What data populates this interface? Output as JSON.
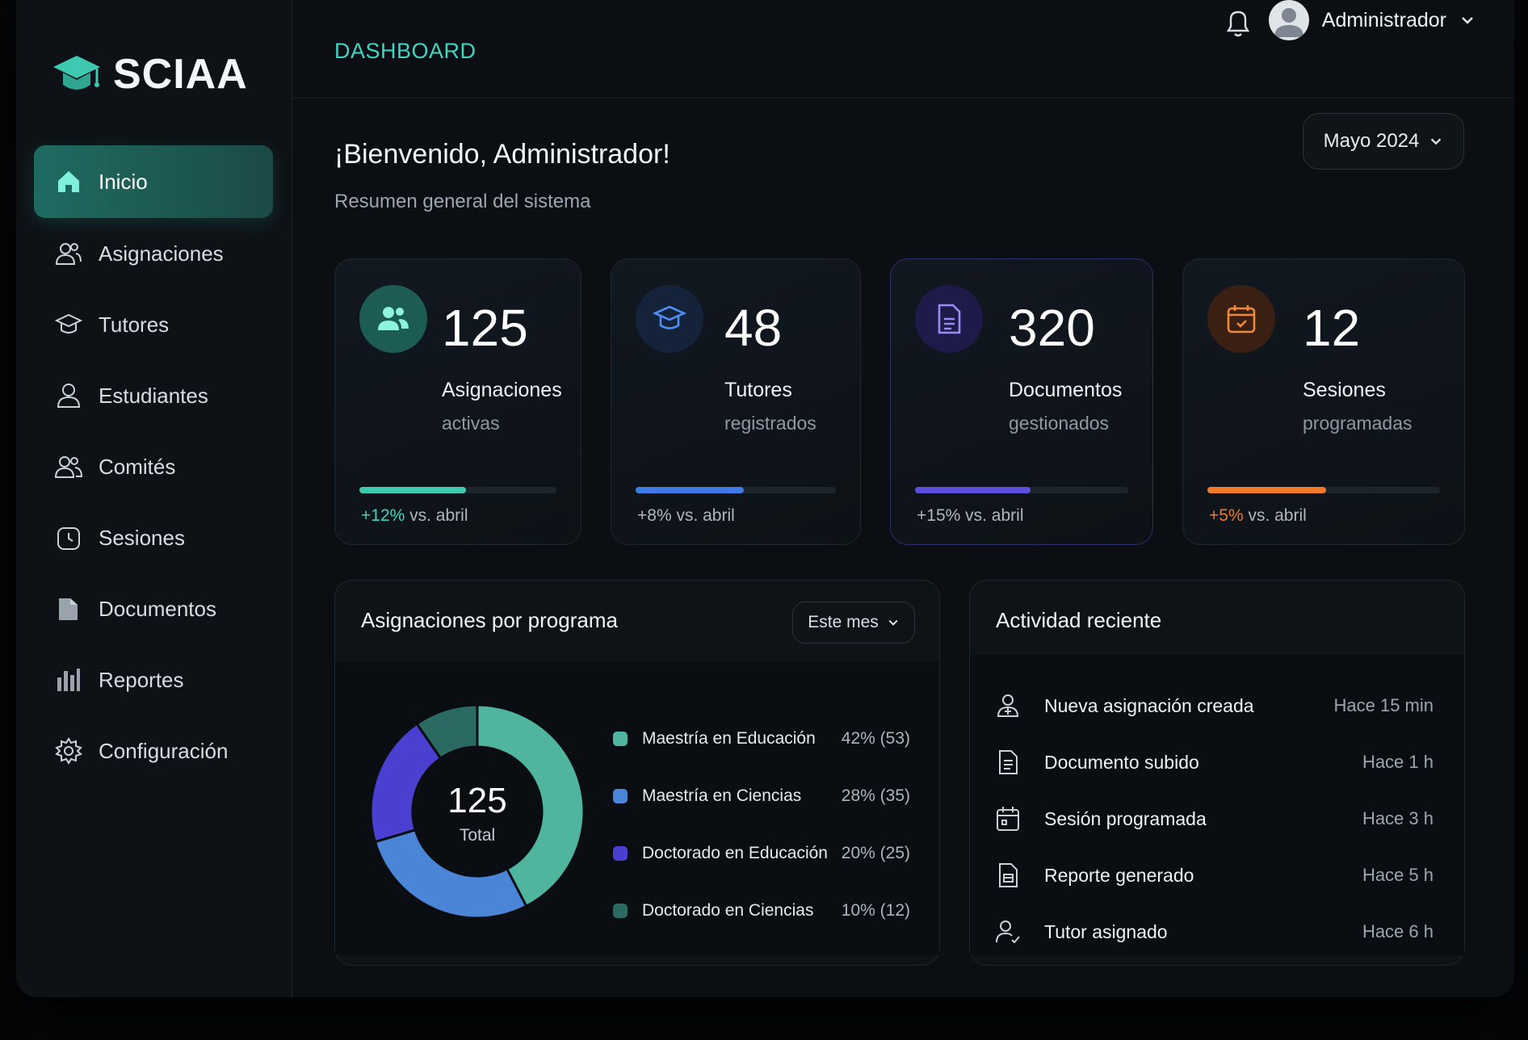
{
  "brand": {
    "name": "SCIAA"
  },
  "header": {
    "title": "DASHBOARD",
    "user_name": "Administrador"
  },
  "sidebar": {
    "items": [
      {
        "label": "Inicio",
        "icon": "home-icon",
        "active": true
      },
      {
        "label": "Asignaciones",
        "icon": "users-icon"
      },
      {
        "label": "Tutores",
        "icon": "graduation-cap-icon"
      },
      {
        "label": "Estudiantes",
        "icon": "user-icon"
      },
      {
        "label": "Comités",
        "icon": "group-icon"
      },
      {
        "label": "Sesiones",
        "icon": "clock-icon"
      },
      {
        "label": "Documentos",
        "icon": "folder-icon"
      },
      {
        "label": "Reportes",
        "icon": "bar-chart-icon"
      },
      {
        "label": "Configuración",
        "icon": "gear-icon"
      }
    ]
  },
  "main": {
    "welcome": "¡Bienvenido, Administrador!",
    "subtitle": "Resumen general del sistema",
    "month": "Mayo 2024"
  },
  "stats": [
    {
      "value": "125",
      "label": "Asignaciones",
      "sublabel": "activas",
      "delta": "+12%",
      "delta_suffix": " vs. abril",
      "progress": 0.54,
      "color": "#3fc9b0",
      "icon": "users-icon"
    },
    {
      "value": "48",
      "label": "Tutores",
      "sublabel": "registrados",
      "delta": "+8%",
      "delta_suffix": " vs. abril",
      "progress": 0.54,
      "color": "#3f7be6",
      "icon": "graduation-cap-icon"
    },
    {
      "value": "320",
      "label": "Documentos",
      "sublabel": "gestionados",
      "delta": "+15%",
      "delta_suffix": " vs. abril",
      "progress": 0.54,
      "color": "#5b4fe0",
      "icon": "document-icon"
    },
    {
      "value": "12",
      "label": "Sesiones",
      "sublabel": "programadas",
      "delta": "+5%",
      "delta_suffix": " vs. abril",
      "progress": 0.51,
      "color": "#f07a2a",
      "icon": "calendar-icon"
    }
  ],
  "program_panel": {
    "title": "Asignaciones por programa",
    "period": "Este mes",
    "total_value": "125",
    "total_label": "Total"
  },
  "chart_data": {
    "type": "pie",
    "categories": [
      "Maestría en Educación",
      "Maestría en Ciencias",
      "Doctorado en Educación",
      "Doctorado en Ciencias"
    ],
    "values": [
      53,
      35,
      25,
      12
    ],
    "percent_labels": [
      "42% (53)",
      "28% (35)",
      "20% (25)",
      "10% (12)"
    ],
    "colors": [
      "#4fb59e",
      "#4a85d8",
      "#4a3fd0",
      "#2a6a62"
    ],
    "center_value": "125",
    "center_label": "Total"
  },
  "activity_panel": {
    "title": "Actividad reciente",
    "items": [
      {
        "text": "Nueva asignación creada",
        "time": "Hace 15 min",
        "icon": "user-add-icon"
      },
      {
        "text": "Documento subido",
        "time": "Hace 1 h",
        "icon": "document-icon"
      },
      {
        "text": "Sesión programada",
        "time": "Hace 3 h",
        "icon": "calendar-icon"
      },
      {
        "text": "Reporte generado",
        "time": "Hace 5 h",
        "icon": "report-icon"
      },
      {
        "text": "Tutor asignado",
        "time": "Hace 6 h",
        "icon": "user-check-icon"
      }
    ]
  }
}
